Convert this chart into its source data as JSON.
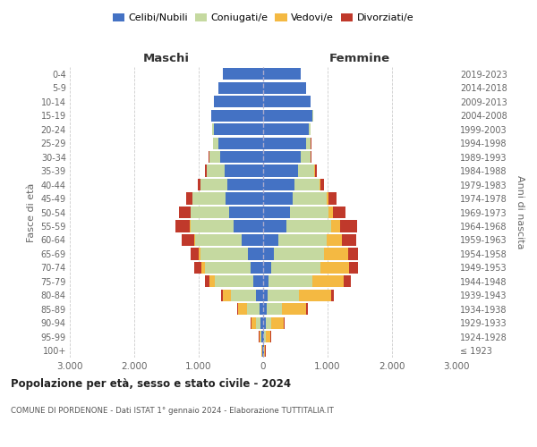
{
  "age_groups": [
    "100+",
    "95-99",
    "90-94",
    "85-89",
    "80-84",
    "75-79",
    "70-74",
    "65-69",
    "60-64",
    "55-59",
    "50-54",
    "45-49",
    "40-44",
    "35-39",
    "30-34",
    "25-29",
    "20-24",
    "15-19",
    "10-14",
    "5-9",
    "0-4"
  ],
  "birth_years": [
    "≤ 1923",
    "1924-1928",
    "1929-1933",
    "1934-1938",
    "1939-1943",
    "1944-1948",
    "1949-1953",
    "1954-1958",
    "1959-1963",
    "1964-1968",
    "1969-1973",
    "1974-1978",
    "1979-1983",
    "1984-1988",
    "1989-1993",
    "1994-1998",
    "1999-2003",
    "2004-2008",
    "2009-2013",
    "2014-2018",
    "2019-2023"
  ],
  "maschi": {
    "celibi": [
      10,
      25,
      40,
      60,
      110,
      155,
      195,
      230,
      340,
      460,
      530,
      580,
      560,
      600,
      660,
      700,
      760,
      800,
      760,
      700,
      630
    ],
    "coniugati": [
      8,
      20,
      70,
      190,
      390,
      590,
      710,
      740,
      710,
      670,
      590,
      520,
      410,
      270,
      170,
      75,
      25,
      8,
      4,
      1,
      0
    ],
    "vedovi": [
      4,
      15,
      70,
      140,
      125,
      85,
      55,
      28,
      18,
      8,
      4,
      4,
      2,
      1,
      0,
      0,
      0,
      0,
      0,
      0,
      0
    ],
    "divorziati": [
      1,
      4,
      8,
      18,
      28,
      75,
      115,
      125,
      190,
      220,
      175,
      95,
      45,
      25,
      15,
      8,
      4,
      1,
      0,
      0,
      0
    ]
  },
  "femmine": {
    "nubili": [
      8,
      20,
      40,
      50,
      70,
      90,
      120,
      160,
      240,
      360,
      420,
      465,
      485,
      535,
      585,
      665,
      715,
      765,
      730,
      665,
      585
    ],
    "coniugate": [
      8,
      20,
      90,
      240,
      490,
      670,
      770,
      790,
      740,
      690,
      590,
      520,
      390,
      260,
      150,
      75,
      20,
      6,
      2,
      0,
      0
    ],
    "vedove": [
      18,
      75,
      190,
      370,
      490,
      490,
      440,
      370,
      240,
      140,
      75,
      35,
      18,
      8,
      4,
      1,
      0,
      0,
      0,
      0,
      0
    ],
    "divorziate": [
      1,
      4,
      12,
      28,
      48,
      115,
      145,
      155,
      230,
      270,
      195,
      115,
      55,
      25,
      12,
      4,
      1,
      0,
      0,
      0,
      0
    ]
  },
  "colors": {
    "celibi_nubili": "#4472C4",
    "coniugati": "#C5D9A0",
    "vedovi": "#F4B942",
    "divorziati": "#C0392B"
  },
  "xlim": 3000,
  "title": "Popolazione per età, sesso e stato civile - 2024",
  "subtitle": "COMUNE DI PORDENONE - Dati ISTAT 1° gennaio 2024 - Elaborazione TUTTITALIA.IT",
  "ylabel": "Fasce di età",
  "ylabel_right": "Anni di nascita",
  "xlabel_left": "Maschi",
  "xlabel_right": "Femmine",
  "bg_color": "#ffffff",
  "grid_color": "#cccccc"
}
